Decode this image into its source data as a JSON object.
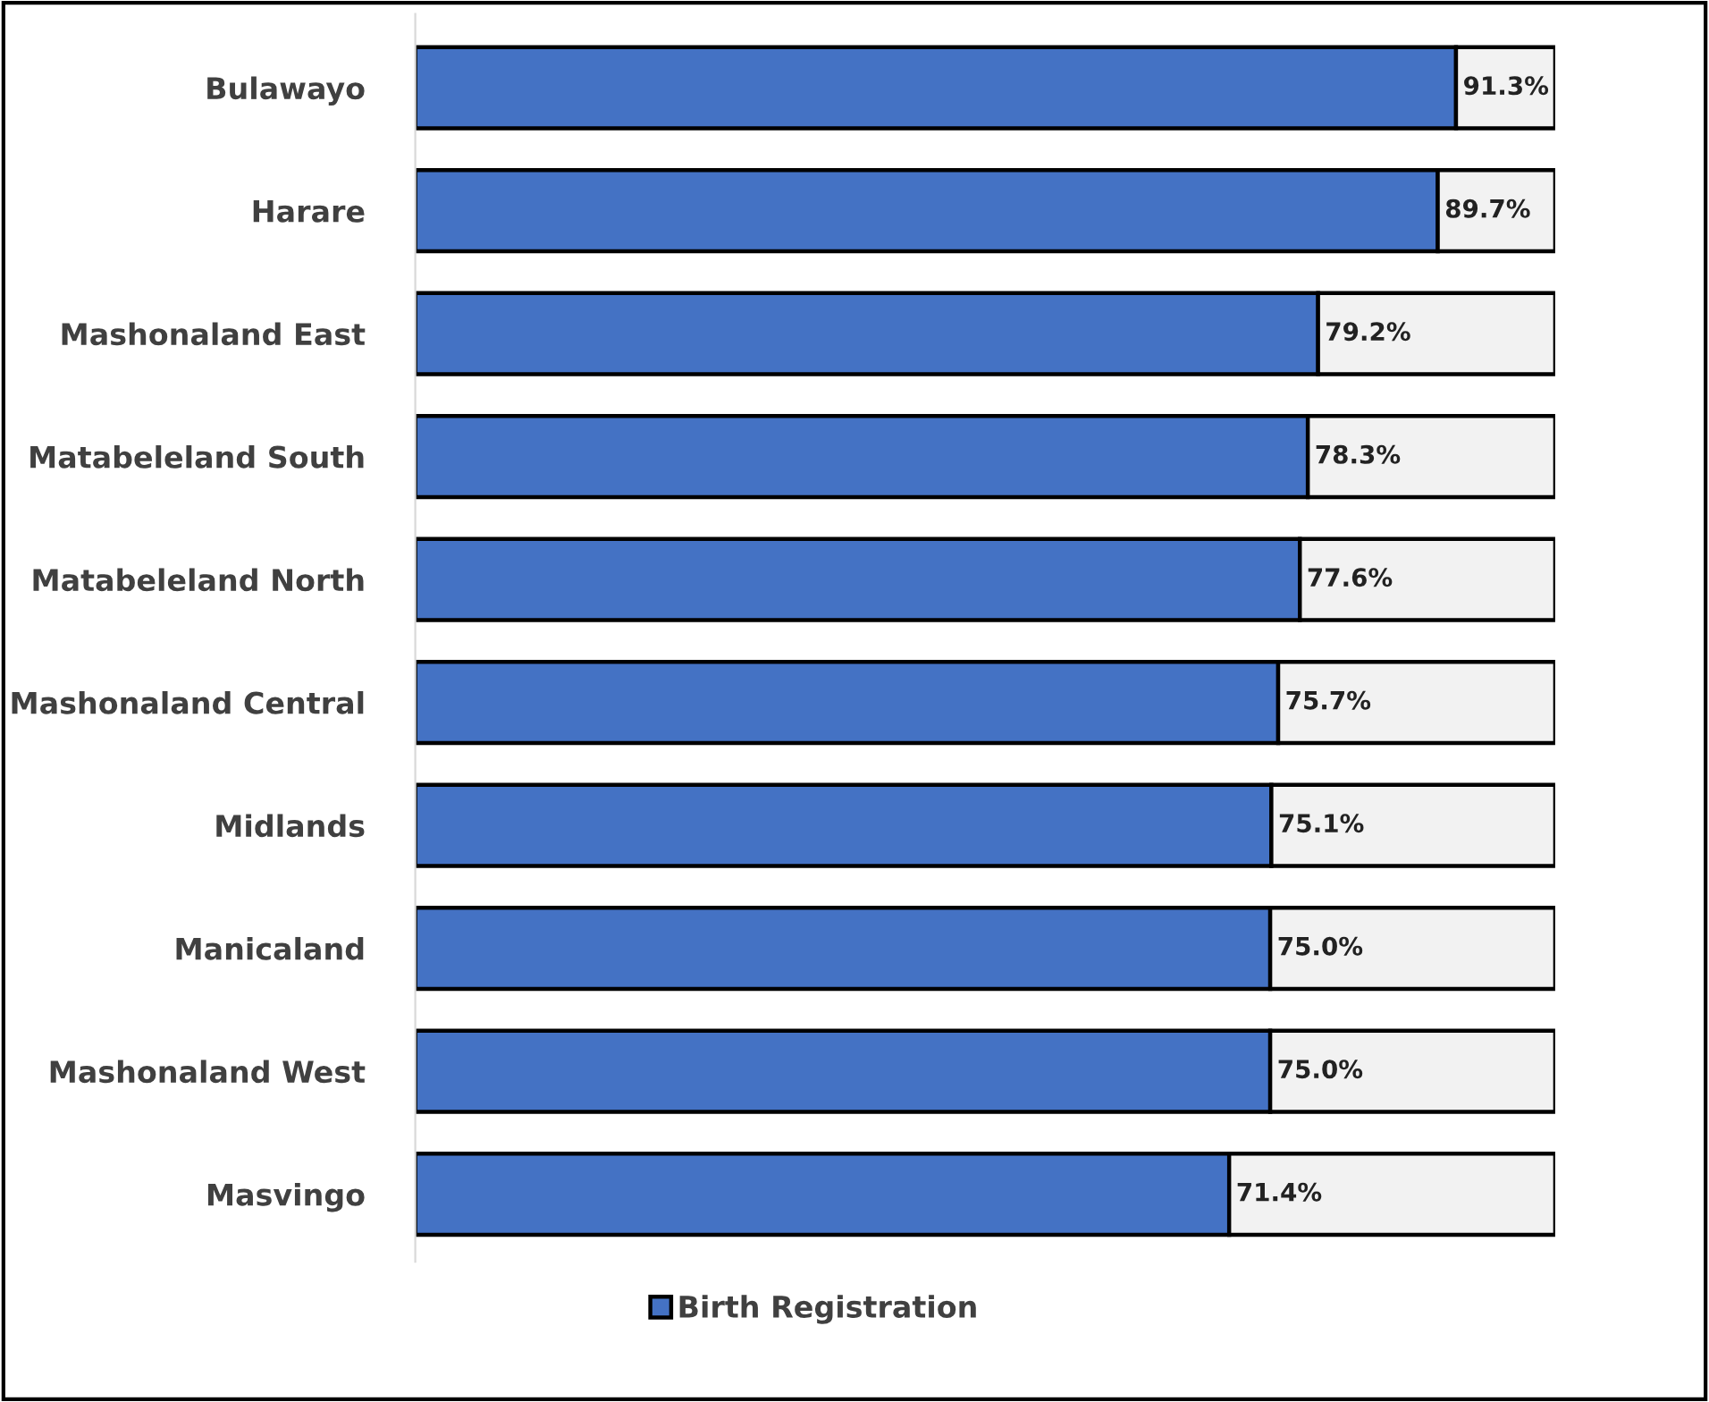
{
  "chart_data": {
    "type": "bar",
    "orientation": "horizontal",
    "stacked": true,
    "categories": [
      "Bulawayo",
      "Harare",
      "Mashonaland East",
      "Matabeleland South",
      "Matabeleland North",
      "Mashonaland Central",
      "Midlands",
      "Manicaland",
      "Mashonaland West",
      "Masvingo"
    ],
    "series": [
      {
        "name": "Birth Registration",
        "color": "#4472c4",
        "values": [
          91.3,
          89.7,
          79.2,
          78.3,
          77.6,
          75.7,
          75.1,
          75.0,
          75.0,
          71.4
        ],
        "value_labels": [
          "91.3%",
          "89.7%",
          "79.2%",
          "78.3%",
          "77.6%",
          "75.7%",
          "75.1%",
          "75.0%",
          "75.0%",
          "71.4%"
        ]
      },
      {
        "color": "#f2f2f2",
        "values": [
          8.7,
          10.3,
          20.8,
          21.7,
          22.4,
          24.3,
          24.9,
          25.0,
          25.0,
          28.6
        ]
      }
    ],
    "xlim": [
      0,
      100
    ],
    "tick_labels": "y",
    "grid": false,
    "legend": "bottom"
  }
}
